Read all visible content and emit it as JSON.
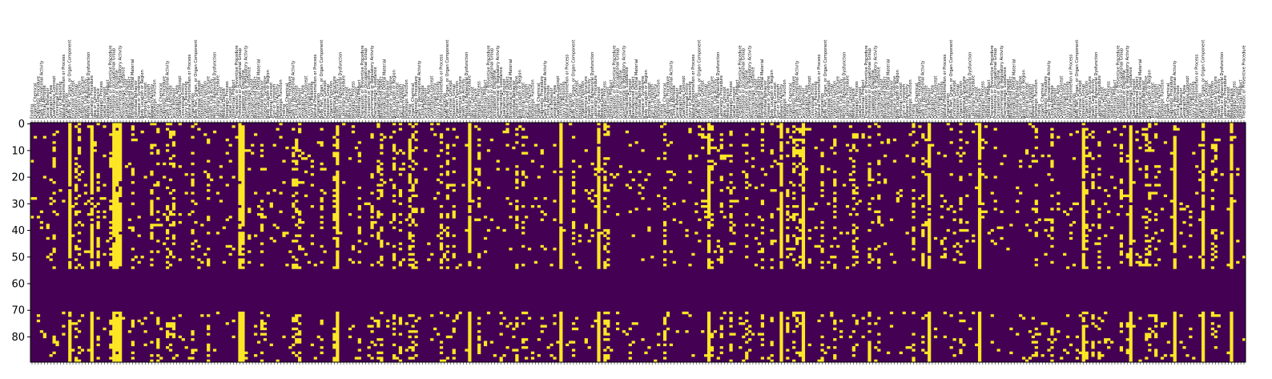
{
  "chart_data": {
    "type": "heatmap",
    "title": "",
    "xlabel": "",
    "ylabel": "",
    "n_rows": 90,
    "n_cols": 386,
    "ylim": [
      89.5,
      -0.5
    ],
    "colormap": {
      "low": "#440154",
      "high": "#fde725"
    },
    "values_range": [
      0,
      1
    ],
    "y_ticks": [
      0,
      10,
      20,
      30,
      40,
      50,
      60,
      70,
      80
    ],
    "y_tick_labels": [
      "0",
      "10",
      "20",
      "30",
      "40",
      "50",
      "60",
      "70",
      "80"
    ],
    "top_tick_labels_pattern": [
      "Finding",
      "Health Care Activity",
      "Disease or Syndrome",
      "Geographic Area",
      "Spatial Concept",
      "Body Location or Region",
      "Body Part, Organ, or Organ Component",
      "Pharmacologic Substance",
      "Organic Chemical",
      "Mental or Behavioral Dysfunction",
      "Qualitative Concept",
      "Quantitative Concept",
      "Intellectual Product",
      "Temporal Concept",
      "Functional Concept",
      "Therapeutic or Preventive Procedure",
      "Diagnostic Procedure",
      "Laboratory Procedure",
      "Manufactured Object",
      "Conceptual Entity",
      "Idea or Concept",
      "Sign or Symptom",
      "Population Group",
      "Professional or Occupational Group",
      "Daily or Recreational Activity",
      "Organism Function",
      "Biomedical or Dental Material",
      "Injury or Poisoning",
      "Medical Device",
      "Research Activity",
      "Natural Phenomenon or Process",
      "Occupation or Discipline",
      "Clinical Attribute",
      "Anatomical Structure",
      "Individual Behavior",
      "Social Behavior",
      "Neoplastic Process",
      "Pathologic Function",
      "Organization",
      "Governmental or Regulatory Activity"
    ],
    "active_columns_pattern": [
      12,
      19,
      26,
      27,
      28,
      66,
      67,
      97,
      139,
      168,
      180,
      215,
      238,
      245,
      285,
      301,
      334,
      349,
      363,
      372,
      381
    ],
    "blank_rows": [
      55,
      56,
      57,
      58,
      59,
      60,
      61,
      62,
      63,
      64,
      65,
      66,
      67,
      68,
      69,
      70
    ]
  }
}
